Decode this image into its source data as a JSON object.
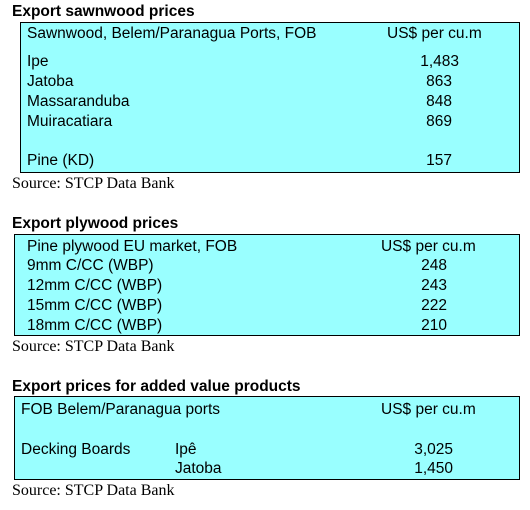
{
  "sawnwood": {
    "title": "Export sawnwood prices",
    "header_left": "Sawnwood, Belem/Paranagua Ports, FOB",
    "header_right": "US$ per cu.m",
    "rows": [
      {
        "name": "Ipe",
        "value": "1,483"
      },
      {
        "name": "Jatoba",
        "value": "863"
      },
      {
        "name": "Massaranduba",
        "value": "848"
      },
      {
        "name": "Muiracatiara",
        "value": "869"
      },
      {
        "name": "Pine (KD)",
        "value": "157"
      }
    ],
    "source": "Source: STCP Data Bank"
  },
  "plywood": {
    "title": "Export plywood prices",
    "header_left": "Pine plywood EU market, FOB",
    "header_right": "US$ per cu.m",
    "rows": [
      {
        "name": "9mm C/CC (WBP)",
        "value": "248"
      },
      {
        "name": "12mm C/CC (WBP)",
        "value": "243"
      },
      {
        "name": "15mm C/CC (WBP)",
        "value": "222"
      },
      {
        "name": "18mm C/CC (WBP)",
        "value": "210"
      }
    ],
    "source": "Source: STCP Data Bank"
  },
  "added_value": {
    "title": "Export prices for added value products",
    "header_left": "FOB Belem/Paranagua ports",
    "header_right": "US$ per cu.m",
    "product": "Decking Boards",
    "rows": [
      {
        "name": "Ipê",
        "value": "3,025"
      },
      {
        "name": "Jatoba",
        "value": "1,450"
      }
    ],
    "source": "Source: STCP Data Bank"
  }
}
